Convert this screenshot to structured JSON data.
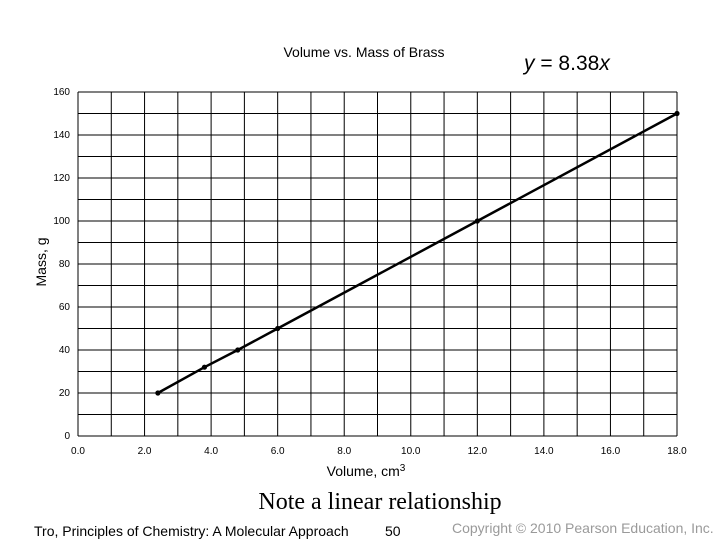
{
  "chart_data": {
    "type": "line",
    "title": "Volume vs. Mass of Brass",
    "equation": {
      "lhs": "y",
      "rhs_prefix": " = 8.38",
      "var": "x"
    },
    "xlabel": {
      "text": "Volume, cm",
      "sup": "3"
    },
    "ylabel": "Mass, g",
    "xlim": [
      0,
      18
    ],
    "ylim": [
      0,
      160
    ],
    "grid": true,
    "x_ticks": [
      0,
      2,
      4,
      6,
      8,
      10,
      12,
      14,
      16,
      18
    ],
    "x_tick_labels": [
      "0.0",
      "2.0",
      "4.0",
      "6.0",
      "8.0",
      "10.0",
      "12.0",
      "14.0",
      "16.0",
      "18.0"
    ],
    "y_ticks": [
      0,
      20,
      40,
      60,
      80,
      100,
      120,
      140,
      160
    ],
    "y_tick_labels": [
      "0",
      "20",
      "40",
      "60",
      "80",
      "100",
      "120",
      "140",
      "160"
    ],
    "series": [
      {
        "x": [
          2.4,
          3.8,
          4.8,
          6.0,
          12.0,
          18.0
        ],
        "y": [
          20,
          32,
          40,
          50,
          100,
          150
        ],
        "color": "#000000"
      }
    ]
  },
  "slide": {
    "caption": "Note a linear relationship",
    "footer_left": "Tro, Principles of Chemistry: A Molecular Approach",
    "page_number": "50",
    "copyright": "Copyright © 2010 Pearson Education, Inc."
  }
}
